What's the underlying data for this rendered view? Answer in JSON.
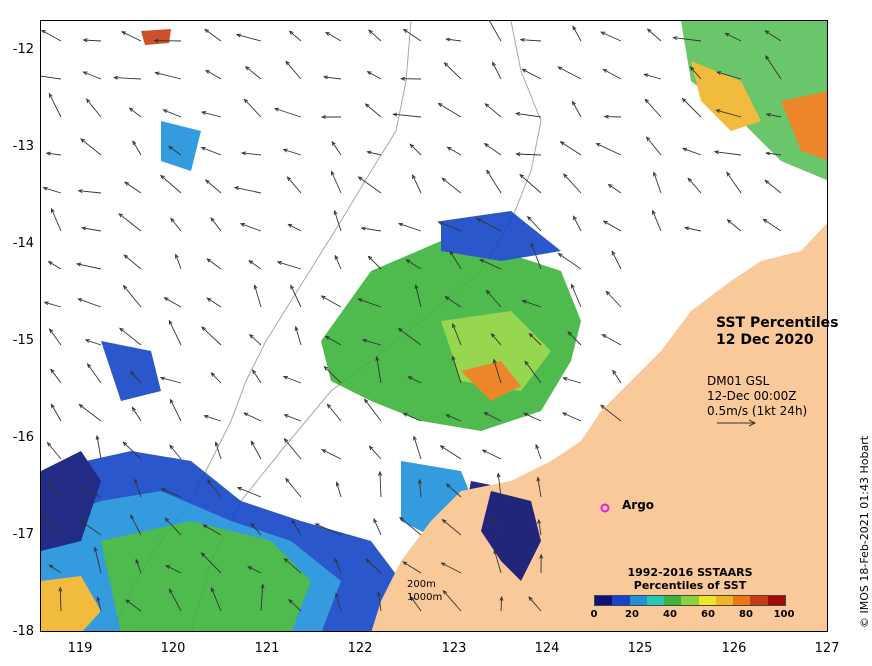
{
  "map": {
    "title_line1": "SST Percentiles",
    "title_line2": "12 Dec 2020",
    "vector_info": {
      "line1": "DM01 GSL",
      "line2": "12-Dec 00:00Z",
      "line3": "0.5m/s (1kt 24h)"
    },
    "argo_label": "Argo",
    "depth_labels": [
      "200m",
      "1000m"
    ],
    "legend": {
      "title_line1": "1992-2016 SSTAARS",
      "title_line2": "Percentiles of SST",
      "ticks": [
        "0",
        "20",
        "40",
        "60",
        "80",
        "100"
      ],
      "colors": [
        "#0a1478",
        "#1444c8",
        "#1e90dc",
        "#28c8b4",
        "#3cb43c",
        "#8cd23c",
        "#f0e628",
        "#f0b428",
        "#eb7814",
        "#c83c14",
        "#a00a0a"
      ]
    },
    "y_axis_labels": [
      "-12",
      "-13",
      "-14",
      "-15",
      "-16",
      "-17",
      "-18"
    ],
    "x_axis_labels": [
      "119",
      "120",
      "121",
      "122",
      "123",
      "124",
      "125",
      "126",
      "127"
    ],
    "credit": "© IMOS 18-Feb-2021 01:43 Hobart",
    "land_color": "#f9c99a",
    "argo_color": "#e020e0"
  }
}
